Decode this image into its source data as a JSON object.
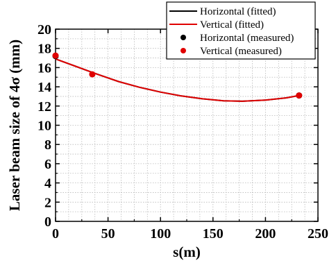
{
  "chart_data": {
    "type": "line",
    "xlabel": "s(m)",
    "ylabel": "Laser beam size of 4σ (mm)",
    "xlim": [
      0,
      250
    ],
    "ylim": [
      0,
      20
    ],
    "x_ticks": [
      0,
      50,
      100,
      150,
      200,
      250
    ],
    "y_ticks": [
      0,
      2,
      4,
      6,
      8,
      10,
      12,
      14,
      16,
      18,
      20
    ],
    "grid": true,
    "legend_position": "top-right",
    "fitted_x": [
      0,
      20,
      40,
      60,
      80,
      100,
      120,
      140,
      160,
      178,
      200,
      220,
      232
    ],
    "series": [
      {
        "name": "Horizontal (fitted)",
        "kind": "line",
        "color": "#000000",
        "y": [
          16.9,
          16.1,
          15.3,
          14.55,
          13.95,
          13.45,
          13.05,
          12.75,
          12.55,
          12.5,
          12.62,
          12.85,
          13.1
        ]
      },
      {
        "name": "Vertical (fitted)",
        "kind": "line",
        "color": "#e00000",
        "y": [
          16.9,
          16.1,
          15.3,
          14.55,
          13.95,
          13.45,
          13.05,
          12.75,
          12.55,
          12.5,
          12.62,
          12.85,
          13.1
        ]
      },
      {
        "name": "Horizontal (measured)",
        "kind": "scatter",
        "color": "#000000",
        "points": [
          {
            "x": 0,
            "y": 17.2
          },
          {
            "x": 232,
            "y": 13.1
          }
        ]
      },
      {
        "name": "Vertical (measured)",
        "kind": "scatter",
        "color": "#e00000",
        "points": [
          {
            "x": 0,
            "y": 17.25
          },
          {
            "x": 35,
            "y": 15.3
          },
          {
            "x": 232,
            "y": 13.1
          }
        ]
      }
    ]
  }
}
